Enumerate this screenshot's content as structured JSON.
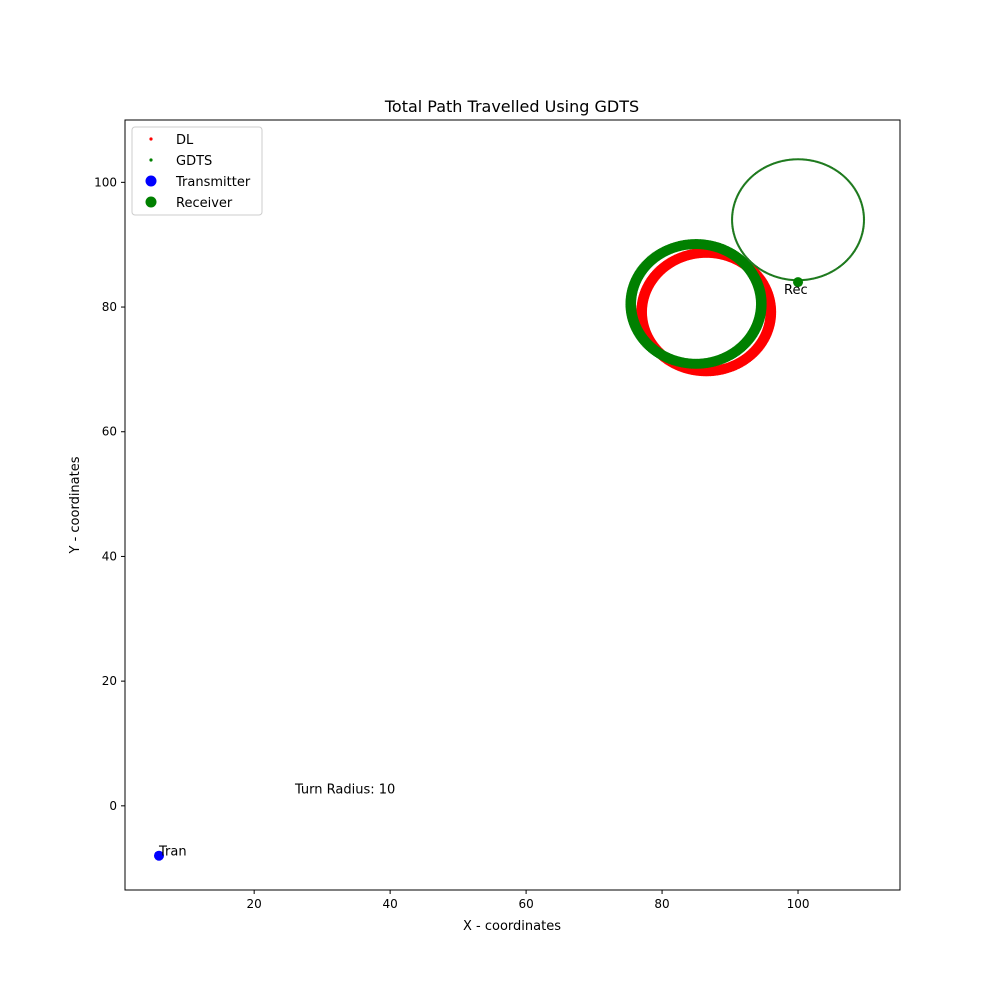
{
  "chart_data": {
    "type": "scatter",
    "title": "Total Path Travelled Using GDTS",
    "xlabel": "X - coordinates",
    "ylabel": "Y - coordinates",
    "xlim": [
      1,
      115
    ],
    "ylim": [
      -13.5,
      110
    ],
    "xticks": [
      20,
      40,
      60,
      80,
      100
    ],
    "yticks": [
      0,
      20,
      40,
      60,
      80,
      100
    ],
    "grid": false,
    "legend_placement": "top-left",
    "series": [
      {
        "name": "DL",
        "kind": "circle-path",
        "color": "#ff0000",
        "center": [
          86.5,
          79.2
        ],
        "radius": 9.5,
        "ring_count": 12,
        "ring_spread": 0.55
      },
      {
        "name": "GDTS",
        "kind": "circle-path",
        "color": "#008000",
        "center": [
          85.0,
          80.5
        ],
        "radius": 9.6,
        "ring_count": 12,
        "ring_spread": 0.55
      },
      {
        "name": "GDTS",
        "kind": "circle-path",
        "color": "#1f7a1f",
        "center": [
          100.0,
          94.0
        ],
        "radius": 9.7,
        "ring_count": 1,
        "ring_spread": 0
      }
    ],
    "points": [
      {
        "name": "Transmitter",
        "x": 6,
        "y": -8,
        "color": "#0000ff",
        "label": "Tran"
      },
      {
        "name": "Receiver",
        "x": 100,
        "y": 84,
        "color": "#008000",
        "label": "Rec"
      }
    ],
    "legend": [
      {
        "label": "DL",
        "color": "#ff0000",
        "marker": "small"
      },
      {
        "label": "GDTS",
        "color": "#008000",
        "marker": "small"
      },
      {
        "label": "Transmitter",
        "color": "#0000ff",
        "marker": "large"
      },
      {
        "label": "Receiver",
        "color": "#008000",
        "marker": "large"
      }
    ],
    "annotations": [
      {
        "text": "Turn Radius: 10",
        "x": 26,
        "y": 2
      }
    ]
  }
}
